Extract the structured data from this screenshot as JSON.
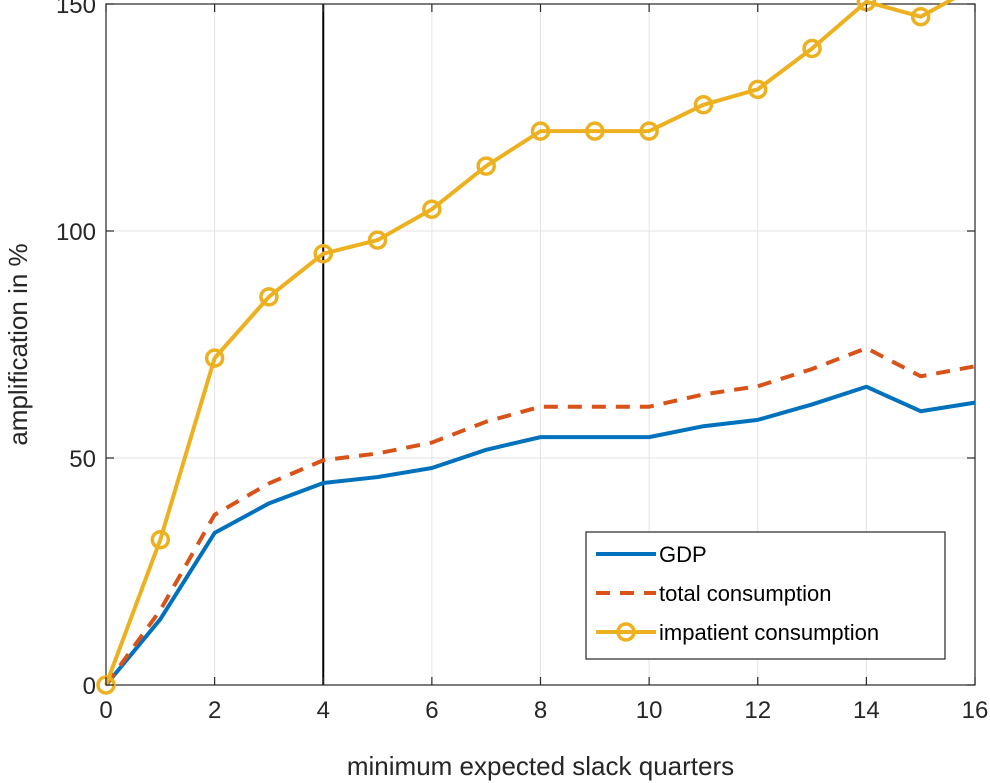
{
  "chart_data": {
    "type": "line",
    "title": "",
    "xlabel": "minimum expected slack quarters",
    "ylabel": "amplification in %",
    "xlim": [
      0,
      16
    ],
    "ylim": [
      0,
      150
    ],
    "xticks": [
      "0",
      "2",
      "4",
      "6",
      "8",
      "10",
      "12",
      "14",
      "16"
    ],
    "yticks": [
      "0",
      "50",
      "100",
      "150"
    ],
    "grid": true,
    "legend_position": "bottom-right",
    "reference_line_x": 4,
    "x": [
      0,
      1,
      2,
      3,
      4,
      5,
      6,
      7,
      8,
      9,
      10,
      11,
      12,
      13,
      14,
      15,
      16
    ],
    "series": [
      {
        "name": "GDP",
        "color": "#0072BD",
        "style": "solid",
        "marker": "none",
        "values": [
          0,
          14.5,
          33.5,
          40,
          44.5,
          45.8,
          47.8,
          51.8,
          54.6,
          54.6,
          54.6,
          57,
          58.4,
          61.8,
          65.7,
          60.3,
          62.2
        ]
      },
      {
        "name": "total consumption",
        "color": "#D95319",
        "style": "dashed",
        "marker": "none",
        "values": [
          0,
          16.5,
          37.5,
          44.4,
          49.5,
          51,
          53.4,
          58,
          61.3,
          61.3,
          61.3,
          64,
          65.8,
          69.6,
          74.2,
          68,
          70.2
        ]
      },
      {
        "name": "impatient consumption",
        "color": "#EDB120",
        "style": "solid",
        "marker": "circle",
        "values": [
          0,
          32,
          72,
          85.5,
          95,
          98,
          104.8,
          114.3,
          122,
          122,
          122,
          127.8,
          131.2,
          140.2,
          150.5,
          147.2,
          153.8
        ]
      }
    ]
  }
}
